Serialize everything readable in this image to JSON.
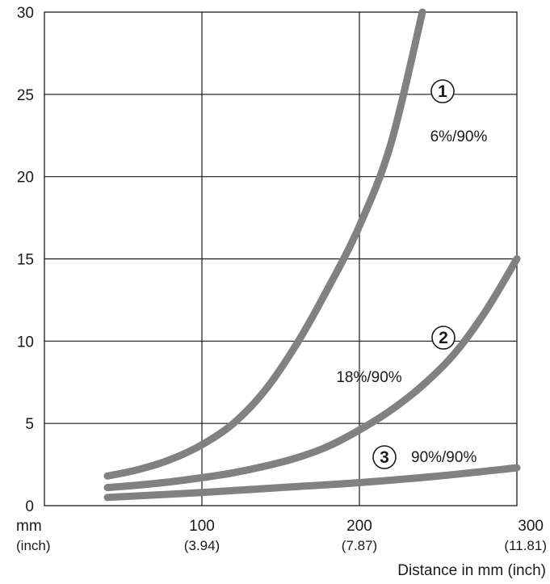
{
  "chart_data": {
    "type": "line",
    "xlabel": "Distance in mm (inch)",
    "x_unit_label": "mm",
    "x_unit_sub_label": "(inch)",
    "ylabel": "",
    "xlim": [
      0,
      300
    ],
    "ylim": [
      0,
      30
    ],
    "x_ticks": [
      {
        "value": 100,
        "label": "100",
        "sub": "(3.94)"
      },
      {
        "value": 200,
        "label": "200",
        "sub": "(7.87)"
      },
      {
        "value": 300,
        "label": "300",
        "sub": "(11.81)"
      }
    ],
    "y_ticks": [
      {
        "value": 0,
        "label": "0"
      },
      {
        "value": 5,
        "label": "5"
      },
      {
        "value": 10,
        "label": "10"
      },
      {
        "value": 15,
        "label": "15"
      },
      {
        "value": 20,
        "label": "20"
      },
      {
        "value": 25,
        "label": "25"
      },
      {
        "value": 30,
        "label": "30"
      }
    ],
    "grid": true,
    "line_color": "#7f8281",
    "series": [
      {
        "marker": "1",
        "name": "6%/90%",
        "x": [
          40,
          60,
          80,
          100,
          120,
          140,
          160,
          180,
          200,
          220,
          240
        ],
        "y": [
          1.8,
          2.2,
          2.8,
          3.7,
          5.0,
          7.0,
          9.8,
          13.2,
          17.0,
          22.0,
          30.0
        ]
      },
      {
        "marker": "2",
        "name": "18%/90%",
        "x": [
          40,
          60,
          80,
          100,
          120,
          140,
          160,
          180,
          200,
          220,
          240,
          260,
          280,
          300
        ],
        "y": [
          1.1,
          1.25,
          1.45,
          1.7,
          2.0,
          2.4,
          2.9,
          3.6,
          4.6,
          5.8,
          7.3,
          9.2,
          11.8,
          15.0
        ]
      },
      {
        "marker": "3",
        "name": "90%/90%",
        "x": [
          40,
          100,
          150,
          200,
          250,
          300
        ],
        "y": [
          0.5,
          0.8,
          1.1,
          1.4,
          1.8,
          2.3
        ]
      }
    ]
  }
}
